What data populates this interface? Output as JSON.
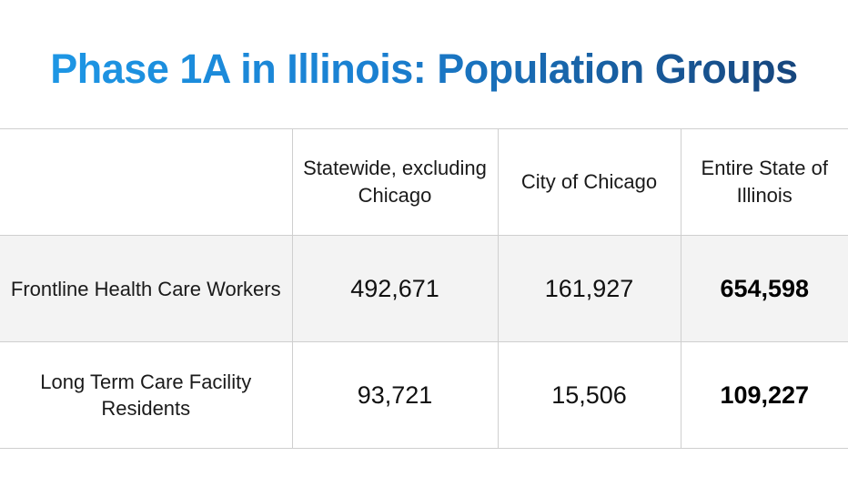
{
  "title": "Phase 1A in Illinois: Population Groups",
  "table": {
    "headers": [
      "",
      "Statewide, excluding Chicago",
      "City of Chicago",
      "Entire State of Illinois"
    ],
    "rows": [
      {
        "label": "Frontline Health Care Workers",
        "statewide_excluding_chicago": "492,671",
        "city_of_chicago": "161,927",
        "entire_state": "654,598"
      },
      {
        "label": "Long Term Care Facility Residents",
        "statewide_excluding_chicago": "93,721",
        "city_of_chicago": "15,506",
        "entire_state": "109,227"
      }
    ]
  },
  "colors": {
    "title_gradient_start": "#1e9ae8",
    "title_gradient_end": "#163e72",
    "row_shade": "#f3f3f3",
    "grid_line": "#cfcfcf"
  }
}
